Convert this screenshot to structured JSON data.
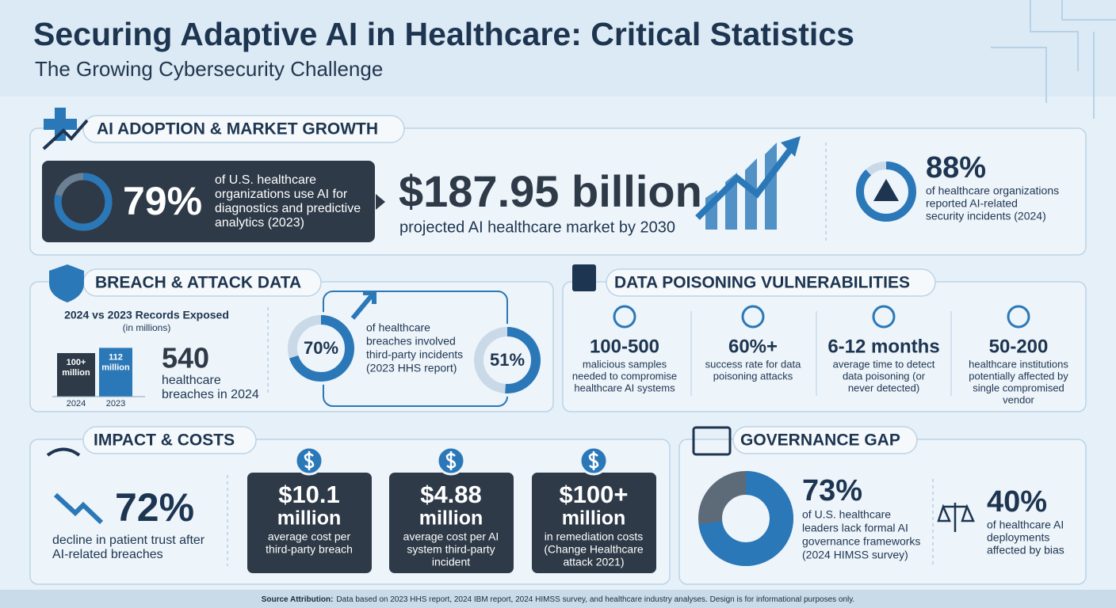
{
  "header": {
    "title": "Securing Adaptive AI in Healthcare: Critical Statistics",
    "subtitle": "The Growing Cybersecurity Challenge"
  },
  "adoption": {
    "heading": "AI ADOPTION & MARKET GROWTH",
    "usage": {
      "percent": {
        "value": 79,
        "label": "79%"
      },
      "lines": [
        "of U.S. healthcare",
        "organizations use AI for",
        "diagnostics and predictive",
        "analytics (2023)"
      ]
    },
    "market": {
      "amount": "$187.95 billion",
      "caption": "projected AI healthcare market by 2030"
    },
    "incidents": {
      "percent": {
        "value": 88,
        "label": "88%"
      },
      "lines": [
        "of healthcare organizations",
        "reported AI-related",
        "security incidents (2024)"
      ]
    }
  },
  "breach": {
    "heading": "BREACH & ATTACK DATA",
    "chart": {
      "title": "2024 vs 2023 Records Exposed",
      "unit": "(in millions)",
      "bars": [
        {
          "year": "2024",
          "value": 100,
          "value_labels": [
            "100+",
            "million"
          ]
        },
        {
          "year": "2023",
          "value": 112,
          "value_labels": [
            "112",
            "million"
          ]
        }
      ]
    },
    "total": {
      "amount": "540",
      "lines": [
        "healthcare",
        "breaches in 2024"
      ]
    },
    "third_party": {
      "first": {
        "value": 70,
        "label": "70%"
      },
      "lines": [
        "of healthcare",
        "breaches involved",
        "third-party incidents",
        "(2023 HHS report)"
      ],
      "second": {
        "value": 51,
        "label": "51%"
      }
    }
  },
  "poisoning": {
    "heading": "DATA POISONING VULNERABILITIES",
    "items": [
      {
        "figure": "100-500",
        "lines": [
          "malicious samples",
          "needed to compromise",
          "healthcare AI systems"
        ]
      },
      {
        "figure": "60%+",
        "lines": [
          "success rate for data",
          "poisoning attacks"
        ]
      },
      {
        "figure": "6-12 months",
        "lines": [
          "average time to detect",
          "data poisoning (or",
          "never detected)"
        ]
      },
      {
        "figure": "50-200",
        "lines": [
          "healthcare institutions",
          "potentially affected by",
          "single compromised",
          "vendor"
        ]
      }
    ]
  },
  "impact": {
    "heading": "IMPACT & COSTS",
    "trust": {
      "figure": "72%",
      "lines": [
        "decline in patient trust after",
        "AI-related breaches"
      ]
    },
    "costs": [
      {
        "amount": "$10.1",
        "unit": "million",
        "lines": [
          "average cost per",
          "third-party breach"
        ]
      },
      {
        "amount": "$4.88",
        "unit": "million",
        "lines": [
          "average cost per AI",
          "system third-party",
          "incident"
        ]
      },
      {
        "amount": "$100+",
        "unit": "million",
        "lines": [
          "in remediation costs",
          "(Change Healthcare",
          "attack 2021)"
        ]
      }
    ]
  },
  "governance": {
    "heading": "GOVERNANCE GAP",
    "leaders": {
      "percent": {
        "value": 73,
        "label": "73%"
      },
      "lines": [
        "of U.S. healthcare",
        "leaders lack formal AI",
        "governance frameworks",
        "(2024 HIMSS survey)"
      ]
    },
    "bias": {
      "figure": "40%",
      "lines": [
        "of healthcare AI",
        "deployments",
        "affected by bias"
      ]
    }
  },
  "footer": {
    "label": "Source Attribution:",
    "text": "Data based on 2023 HHS report, 2024 IBM report, 2024 HIMSS survey, and healthcare industry analyses. Design is for informational purposes only."
  }
}
